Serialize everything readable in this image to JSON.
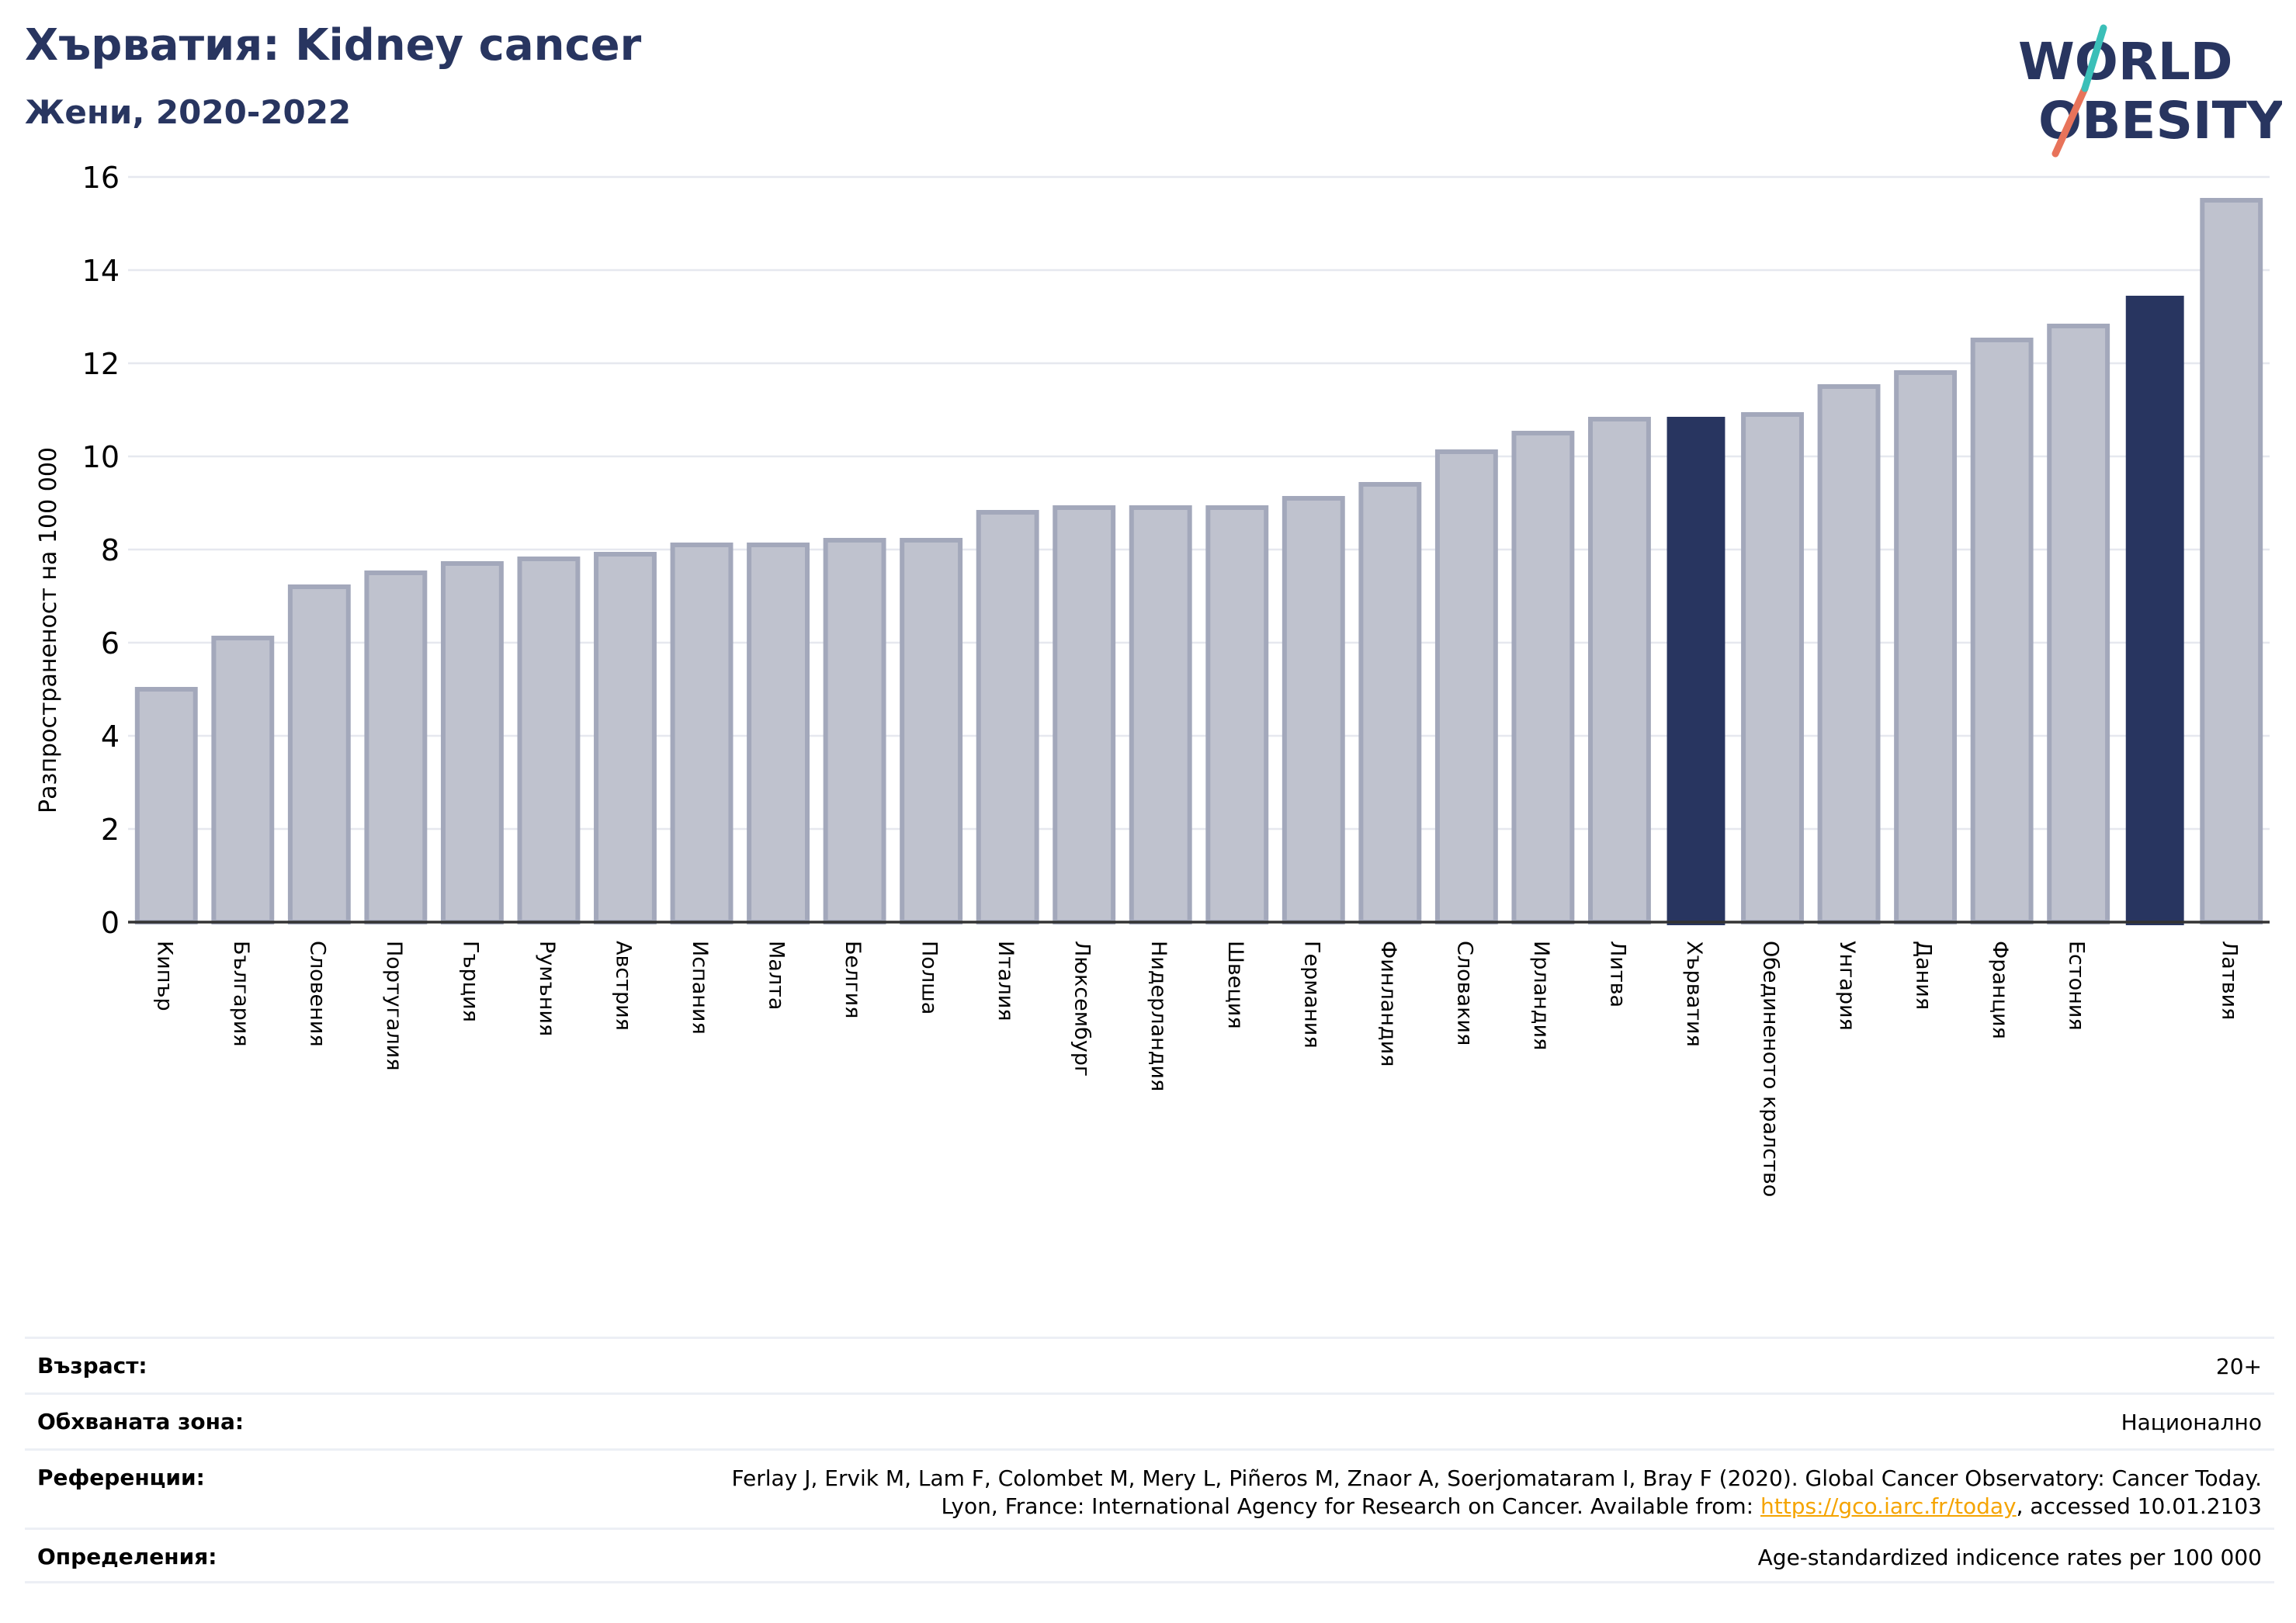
{
  "header": {
    "title": "Хърватия: Kidney cancer",
    "subtitle": "Жени, 2020-2022"
  },
  "logo": {
    "line1": "WORLD",
    "line2": "OBESITY"
  },
  "colors": {
    "highlight": "#283560",
    "bar_fill": "#bfc2ce",
    "bar_stroke": "#a3a8bb",
    "grid": "#e6e8ef",
    "logo_text": "#283560",
    "logo_teal": "#3bbfb8",
    "logo_red": "#e8735a",
    "link": "#f5a400"
  },
  "chart_data": {
    "type": "bar",
    "title": "",
    "xlabel": "",
    "ylabel": "Разпространеност  на 100 000",
    "ylim": [
      0,
      16
    ],
    "yticks": [
      0,
      2,
      4,
      6,
      8,
      10,
      12,
      14,
      16
    ],
    "grid": true,
    "categories": [
      "Кипър",
      "България",
      "Словения",
      "Португалия",
      "Гърция",
      "Румъния",
      "Австрия",
      "Испания",
      "Малта",
      "Белгия",
      "Полша",
      "Италия",
      "Люксембург",
      "Нидерландия",
      "Швеция",
      "Германия",
      "Финландия",
      "Словакия",
      "Ирландия",
      "Литва",
      "Хърватия",
      "Обединеното кралство",
      "Унгария",
      "Дания",
      "Франция",
      "Естония",
      "",
      "Латвия"
    ],
    "values": [
      5.0,
      6.1,
      7.2,
      7.5,
      7.7,
      7.8,
      7.9,
      8.1,
      8.1,
      8.2,
      8.2,
      8.8,
      8.9,
      8.9,
      8.9,
      9.1,
      9.4,
      10.1,
      10.5,
      10.8,
      10.85,
      10.9,
      11.5,
      11.8,
      12.5,
      12.8,
      13.45,
      15.5
    ],
    "highlighted": [
      "Хърватия",
      ""
    ]
  },
  "info": {
    "age_label": "Възраст:",
    "age_value": "20+",
    "coverage_label": "Обхваната зона:",
    "coverage_value": "Национално",
    "references_label": "Референции:",
    "references_line1": "Ferlay J, Ervik M, Lam F, Colombet M, Mery L, Piñeros M, Znaor A, Soerjomataram I, Bray F (2020). Global Cancer Observatory: Cancer Today.",
    "references_line2_prefix": "Lyon, France: International Agency for Research on Cancer. Available from: ",
    "references_link": "https://gco.iarc.fr/today",
    "references_line2_suffix": ", accessed 10.01.2103",
    "definitions_label": "Определения:",
    "definitions_value": "Age-standardized indicence rates per 100 000"
  }
}
